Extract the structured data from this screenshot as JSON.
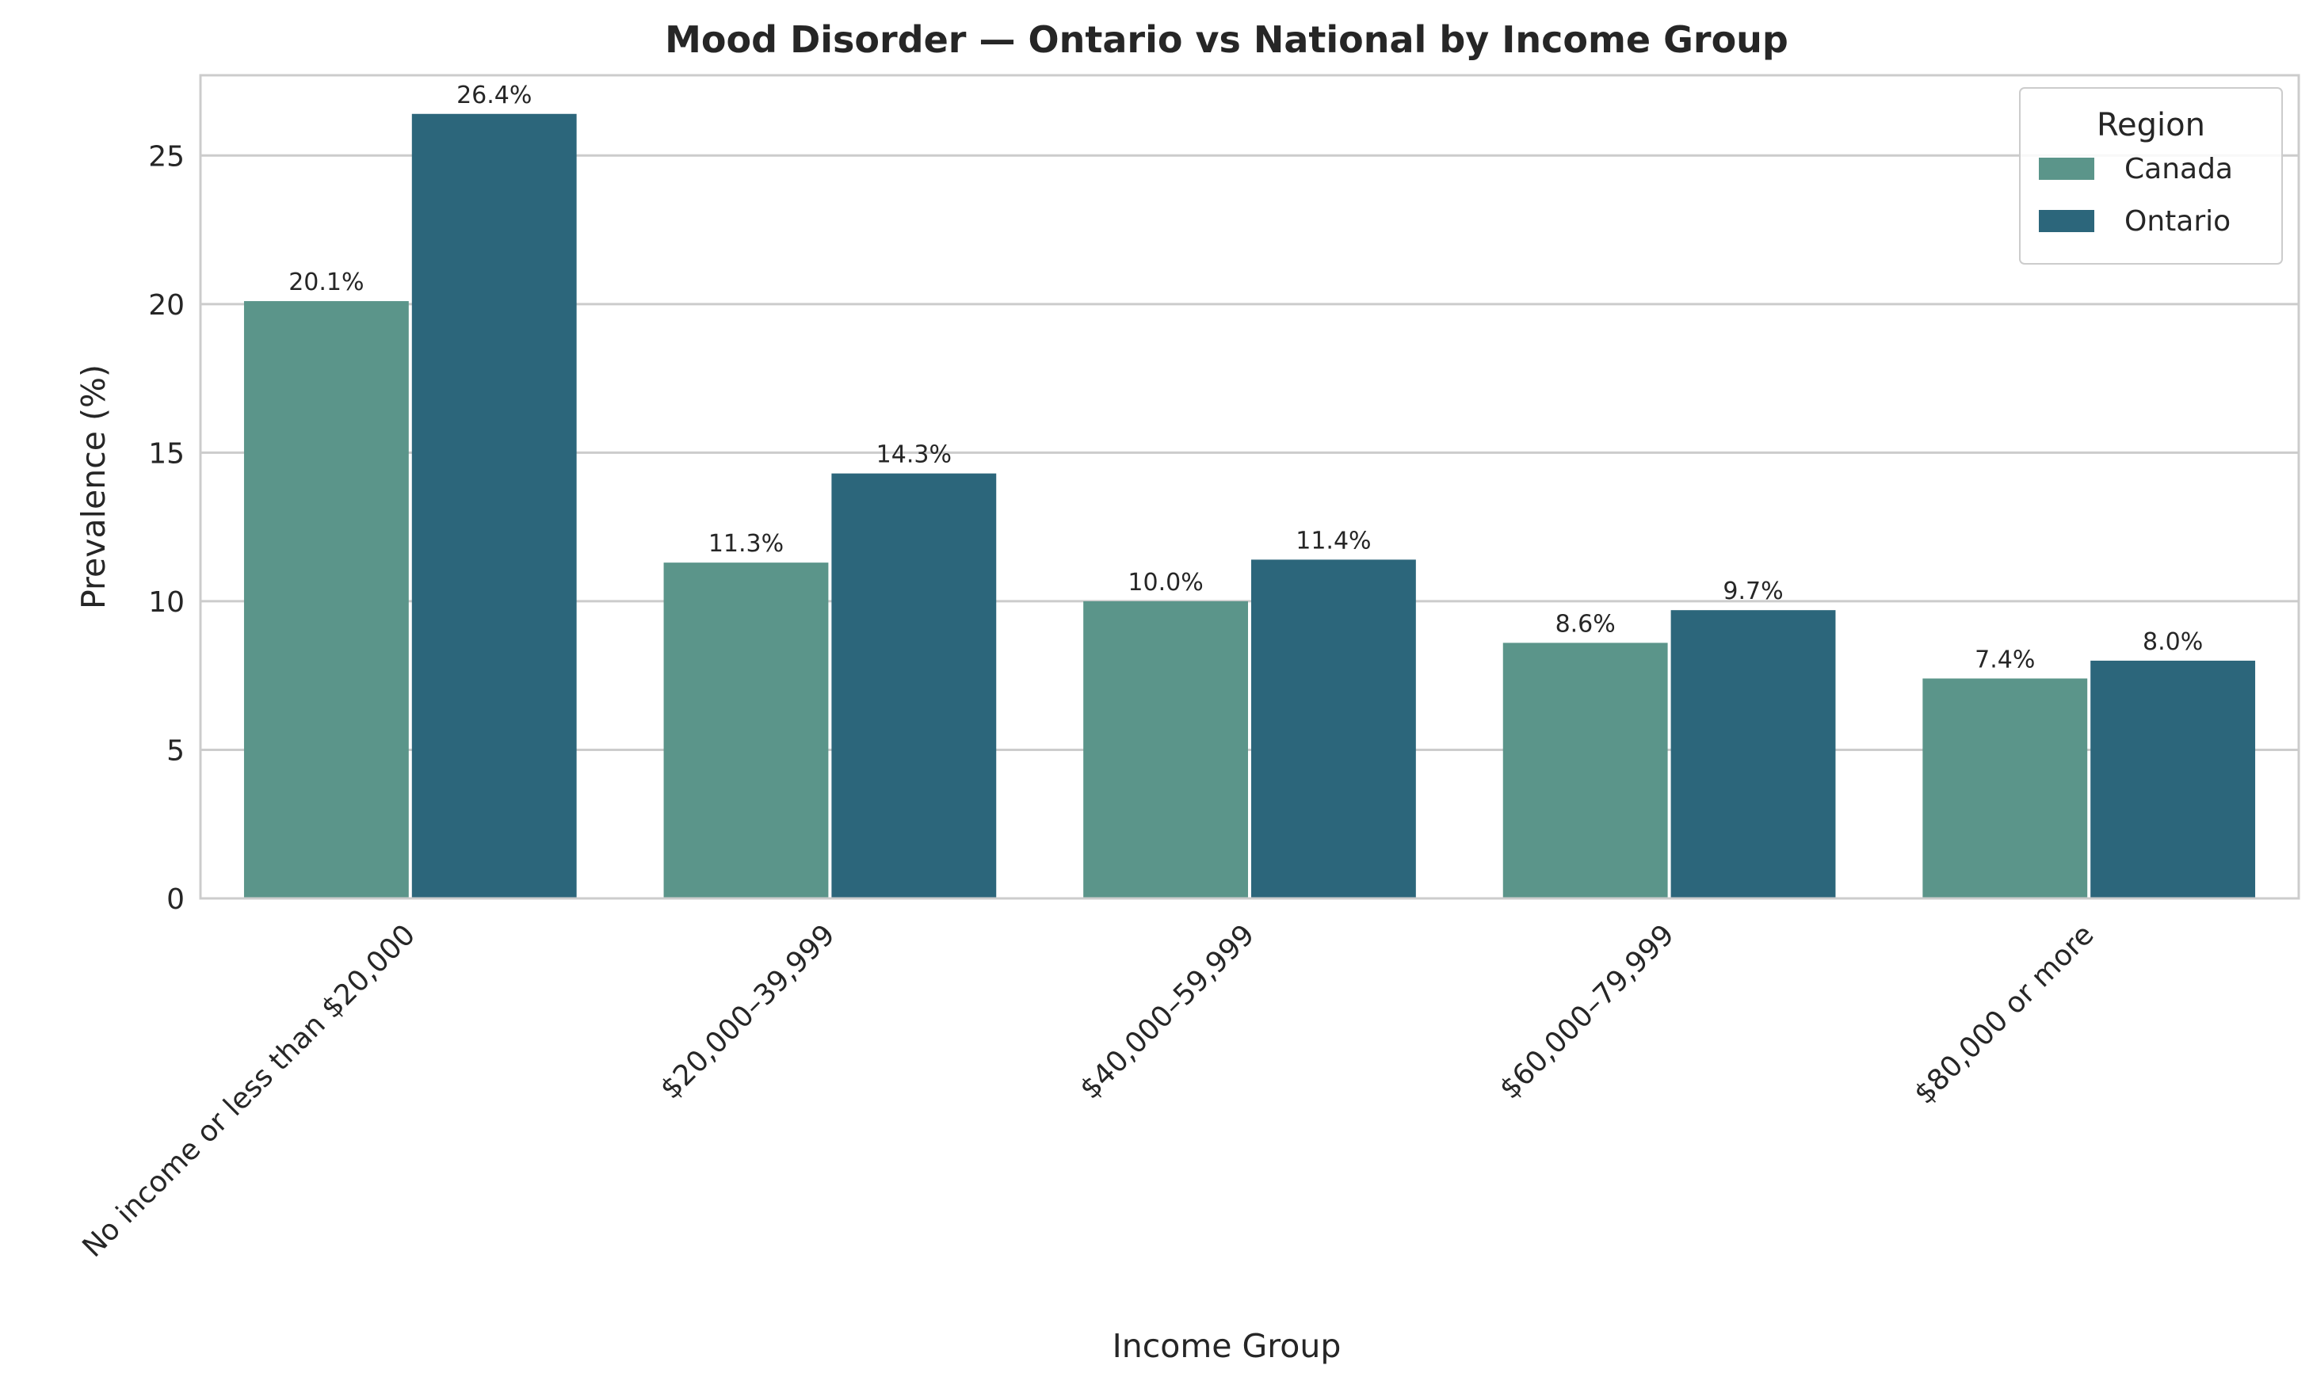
{
  "chart_data": {
    "type": "bar",
    "title": "Mood Disorder — Ontario vs National by Income Group",
    "xlabel": "Income Group",
    "ylabel": "Prevalence (%)",
    "ylim": [
      0,
      27.7
    ],
    "yticks": [
      0,
      5,
      10,
      15,
      20,
      25
    ],
    "grid": "horizontal",
    "legend": {
      "title": "Region",
      "placement": "top-right"
    },
    "categories": [
      "No income or less than $20,000",
      "$20,000–39,999",
      "$40,000–59,999",
      "$60,000–79,999",
      "$80,000 or more"
    ],
    "series": [
      {
        "name": "Canada",
        "color": "#5b958a",
        "values": [
          20.1,
          11.3,
          10.0,
          8.6,
          7.4
        ],
        "labels": [
          "20.1%",
          "11.3%",
          "10.0%",
          "8.6%",
          "7.4%"
        ]
      },
      {
        "name": "Ontario",
        "color": "#2c667b",
        "values": [
          26.4,
          14.3,
          11.4,
          9.7,
          8.0
        ],
        "labels": [
          "26.4%",
          "14.3%",
          "11.4%",
          "9.7%",
          "8.0%"
        ]
      }
    ]
  }
}
